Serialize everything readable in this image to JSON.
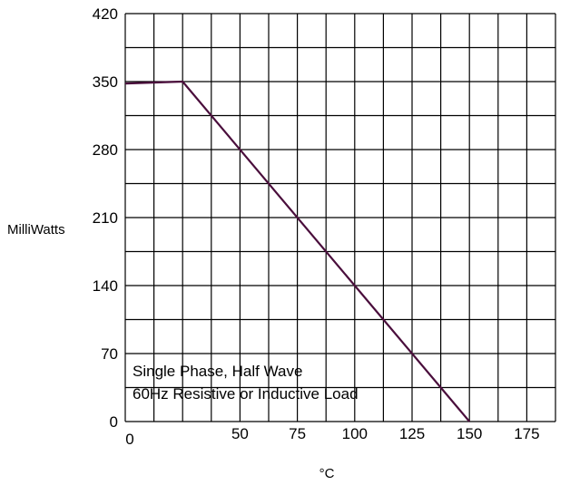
{
  "chart_data": {
    "type": "line",
    "ylabel": "MilliWatts",
    "xlabel": "°C",
    "x_ticks": [
      0,
      50,
      75,
      100,
      125,
      150,
      175
    ],
    "y_ticks": [
      0,
      70,
      140,
      210,
      280,
      350,
      420
    ],
    "xlim": [
      0,
      187.5
    ],
    "ylim": [
      0,
      420
    ],
    "grid": true,
    "grid_step": {
      "x": 12.5,
      "y": 35
    },
    "annotation_lines": [
      "Single Phase, Half Wave",
      "60Hz Resistive or Inductive Load"
    ],
    "series": [
      {
        "x": [
          0,
          25,
          150
        ],
        "y": [
          348,
          350,
          0
        ],
        "color": "#4a0e3c"
      }
    ]
  }
}
